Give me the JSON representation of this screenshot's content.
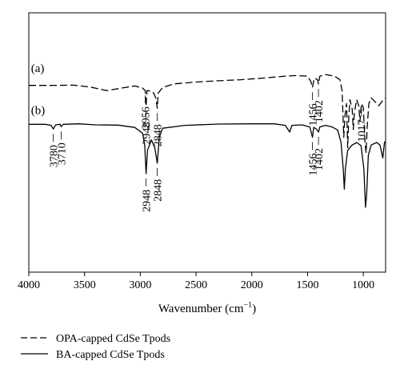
{
  "chart_data": {
    "type": "line",
    "xlabel": "Wavenumber (cm",
    "xlabel_sup": "−1",
    "xlabel_close": ")",
    "xlim": [
      4000,
      800
    ],
    "x_reversed": true,
    "x_ticks": [
      "4000",
      "3500",
      "3000",
      "2500",
      "2000",
      "1500",
      "1000"
    ],
    "ylabel": "",
    "series": [
      {
        "name": "OPA-capped CdSe Tpods",
        "label": "(a)",
        "line_style": "dashed",
        "points": [
          [
            4000,
            0.72
          ],
          [
            3800,
            0.72
          ],
          [
            3600,
            0.721
          ],
          [
            3450,
            0.714
          ],
          [
            3300,
            0.7
          ],
          [
            3150,
            0.711
          ],
          [
            3050,
            0.718
          ],
          [
            2980,
            0.71
          ],
          [
            2956,
            0.7
          ],
          [
            2948,
            0.64
          ],
          [
            2940,
            0.7
          ],
          [
            2900,
            0.698
          ],
          [
            2880,
            0.69
          ],
          [
            2860,
            0.67
          ],
          [
            2848,
            0.632
          ],
          [
            2840,
            0.69
          ],
          [
            2800,
            0.712
          ],
          [
            2700,
            0.726
          ],
          [
            2500,
            0.733
          ],
          [
            2300,
            0.738
          ],
          [
            2100,
            0.742
          ],
          [
            1900,
            0.748
          ],
          [
            1700,
            0.756
          ],
          [
            1600,
            0.758
          ],
          [
            1500,
            0.756
          ],
          [
            1470,
            0.735
          ],
          [
            1456,
            0.712
          ],
          [
            1440,
            0.748
          ],
          [
            1410,
            0.742
          ],
          [
            1402,
            0.725
          ],
          [
            1390,
            0.756
          ],
          [
            1340,
            0.762
          ],
          [
            1260,
            0.756
          ],
          [
            1210,
            0.742
          ],
          [
            1190,
            0.7
          ],
          [
            1175,
            0.52
          ],
          [
            1165,
            0.6
          ],
          [
            1150,
            0.65
          ],
          [
            1140,
            0.48
          ],
          [
            1130,
            0.6
          ],
          [
            1120,
            0.665
          ],
          [
            1100,
            0.63
          ],
          [
            1090,
            0.55
          ],
          [
            1080,
            0.615
          ],
          [
            1060,
            0.665
          ],
          [
            1040,
            0.64
          ],
          [
            1030,
            0.58
          ],
          [
            1017,
            0.65
          ],
          [
            1000,
            0.635
          ],
          [
            985,
            0.5
          ],
          [
            975,
            0.46
          ],
          [
            965,
            0.56
          ],
          [
            950,
            0.65
          ],
          [
            930,
            0.672
          ],
          [
            900,
            0.66
          ],
          [
            860,
            0.642
          ],
          [
            820,
            0.665
          ],
          [
            800,
            0.672
          ]
        ]
      },
      {
        "name": "BA-capped CdSe Tpods",
        "label": "(b)",
        "line_style": "solid",
        "points": [
          [
            4000,
            0.57
          ],
          [
            3850,
            0.57
          ],
          [
            3800,
            0.566
          ],
          [
            3780,
            0.552
          ],
          [
            3760,
            0.568
          ],
          [
            3720,
            0.57
          ],
          [
            3710,
            0.561
          ],
          [
            3690,
            0.57
          ],
          [
            3550,
            0.572
          ],
          [
            3400,
            0.568
          ],
          [
            3200,
            0.567
          ],
          [
            3050,
            0.558
          ],
          [
            2980,
            0.536
          ],
          [
            2960,
            0.49
          ],
          [
            2948,
            0.38
          ],
          [
            2935,
            0.47
          ],
          [
            2900,
            0.51
          ],
          [
            2870,
            0.48
          ],
          [
            2848,
            0.42
          ],
          [
            2830,
            0.52
          ],
          [
            2800,
            0.555
          ],
          [
            2600,
            0.566
          ],
          [
            2300,
            0.571
          ],
          [
            2000,
            0.572
          ],
          [
            1800,
            0.572
          ],
          [
            1700,
            0.566
          ],
          [
            1660,
            0.54
          ],
          [
            1640,
            0.566
          ],
          [
            1550,
            0.568
          ],
          [
            1480,
            0.56
          ],
          [
            1456,
            0.52
          ],
          [
            1445,
            0.558
          ],
          [
            1420,
            0.552
          ],
          [
            1402,
            0.54
          ],
          [
            1390,
            0.56
          ],
          [
            1340,
            0.566
          ],
          [
            1280,
            0.56
          ],
          [
            1230,
            0.548
          ],
          [
            1200,
            0.5
          ],
          [
            1180,
            0.4
          ],
          [
            1170,
            0.32
          ],
          [
            1160,
            0.4
          ],
          [
            1140,
            0.47
          ],
          [
            1100,
            0.49
          ],
          [
            1060,
            0.5
          ],
          [
            1020,
            0.488
          ],
          [
            995,
            0.4
          ],
          [
            980,
            0.25
          ],
          [
            970,
            0.3
          ],
          [
            955,
            0.45
          ],
          [
            930,
            0.49
          ],
          [
            880,
            0.5
          ],
          [
            850,
            0.49
          ],
          [
            825,
            0.44
          ],
          [
            810,
            0.5
          ],
          [
            800,
            0.505
          ]
        ]
      }
    ],
    "peak_labels": [
      {
        "series": 0,
        "x": 2956,
        "text": "2956"
      },
      {
        "series": 0,
        "x": 2948,
        "text": "2948"
      },
      {
        "series": 0,
        "x": 2848,
        "text": "2848"
      },
      {
        "series": 0,
        "x": 1456,
        "text": "1456"
      },
      {
        "series": 0,
        "x": 1402,
        "text": "1402"
      },
      {
        "series": 0,
        "x": 1017,
        "text": "1017"
      },
      {
        "series": 1,
        "x": 3780,
        "text": "3780"
      },
      {
        "series": 1,
        "x": 3710,
        "text": "3710"
      },
      {
        "series": 1,
        "x": 2948,
        "text": "2948"
      },
      {
        "series": 1,
        "x": 2848,
        "text": "2848"
      },
      {
        "series": 1,
        "x": 1456,
        "text": "1456"
      },
      {
        "series": 1,
        "x": 1402,
        "text": "1402"
      }
    ],
    "legend_position": "bottom-left",
    "grid": false
  }
}
